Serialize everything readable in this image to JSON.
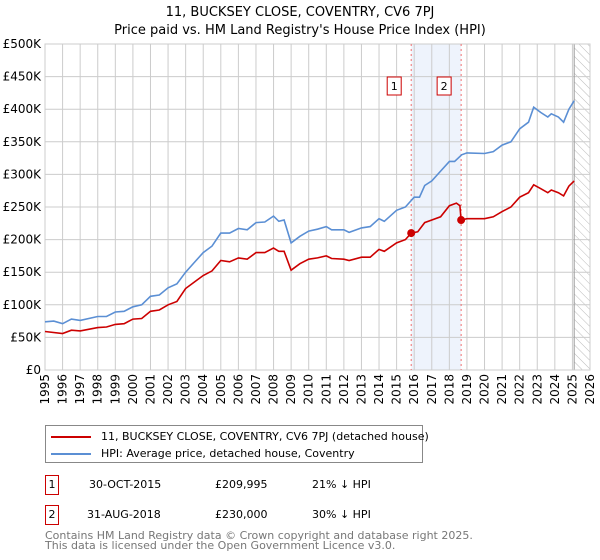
{
  "chart_data": {
    "type": "line",
    "title": "11, BUCKSEY CLOSE, COVENTRY, CV6 7PJ",
    "subtitle": "Price paid vs. HM Land Registry's House Price Index (HPI)",
    "xlim": [
      1995,
      2026
    ],
    "ylim": [
      0,
      500000
    ],
    "grid": true,
    "x_ticks": [
      "1995",
      "1996",
      "1997",
      "1998",
      "1999",
      "2000",
      "2001",
      "2002",
      "2003",
      "2004",
      "2005",
      "2006",
      "2007",
      "2008",
      "2009",
      "2010",
      "2011",
      "2012",
      "2013",
      "2014",
      "2015",
      "2016",
      "2017",
      "2018",
      "2019",
      "2020",
      "2021",
      "2022",
      "2023",
      "2024",
      "2025",
      "2026"
    ],
    "y_ticks": [
      {
        "value": 0,
        "label": "£0"
      },
      {
        "value": 50000,
        "label": "£50K"
      },
      {
        "value": 100000,
        "label": "£100K"
      },
      {
        "value": 150000,
        "label": "£150K"
      },
      {
        "value": 200000,
        "label": "£200K"
      },
      {
        "value": 250000,
        "label": "£250K"
      },
      {
        "value": 300000,
        "label": "£300K"
      },
      {
        "value": 350000,
        "label": "£350K"
      },
      {
        "value": 400000,
        "label": "£400K"
      },
      {
        "value": 450000,
        "label": "£450K"
      },
      {
        "value": 500000,
        "label": "£500K"
      }
    ],
    "shaded_range": [
      2015.83,
      2018.67
    ],
    "forecast_hatch_from": 2025.1,
    "series": [
      {
        "name": "11, BUCKSEY CLOSE, COVENTRY, CV6 7PJ (detached house)",
        "color": "#cc0000",
        "x": [
          1995,
          1996,
          1996.5,
          1997,
          1998,
          1998.5,
          1999,
          1999.5,
          2000,
          2000.5,
          2001,
          2001.5,
          2002,
          2002.5,
          2003,
          2003.5,
          2004,
          2004.5,
          2005,
          2005.5,
          2006,
          2006.5,
          2007,
          2007.5,
          2008,
          2008.3,
          2008.6,
          2009,
          2009.5,
          2010,
          2010.5,
          2011,
          2011.3,
          2012,
          2012.3,
          2013,
          2013.5,
          2014,
          2014.3,
          2015,
          2015.5,
          2015.83,
          2016.2,
          2016.6,
          2017,
          2017.5,
          2018,
          2018.4,
          2018.6,
          2018.67,
          2019,
          2020,
          2020.5,
          2021,
          2021.5,
          2022,
          2022.5,
          2022.8,
          2023.2,
          2023.6,
          2023.8,
          2024.2,
          2024.5,
          2024.8,
          2025.1
        ],
        "y": [
          59000,
          56000,
          61000,
          60000,
          65000,
          66000,
          70000,
          71000,
          78000,
          79000,
          90000,
          92000,
          100000,
          105000,
          125000,
          135000,
          145000,
          152000,
          168000,
          166000,
          172000,
          170000,
          180000,
          180000,
          187000,
          182000,
          182000,
          153000,
          163000,
          170000,
          172000,
          175000,
          171000,
          170000,
          168000,
          173000,
          173000,
          185000,
          182000,
          195000,
          200000,
          209995,
          212000,
          226000,
          230000,
          235000,
          252000,
          256000,
          252000,
          230000,
          232000,
          232000,
          235000,
          243000,
          250000,
          265000,
          272000,
          284000,
          278000,
          272000,
          276000,
          272000,
          267000,
          282000,
          290000
        ]
      },
      {
        "name": "HPI: Average price, detached house, Coventry",
        "color": "#5b8fd4",
        "x": [
          1995,
          1995.5,
          1996,
          1996.5,
          1997,
          1998,
          1998.5,
          1999,
          1999.5,
          2000,
          2000.5,
          2001,
          2001.5,
          2002,
          2002.5,
          2003,
          2003.5,
          2004,
          2004.5,
          2005,
          2005.5,
          2006,
          2006.5,
          2007,
          2007.5,
          2008,
          2008.3,
          2008.6,
          2009,
          2009.5,
          2010,
          2010.5,
          2011,
          2011.3,
          2012,
          2012.3,
          2013,
          2013.5,
          2014,
          2014.3,
          2015,
          2015.5,
          2016,
          2016.3,
          2016.6,
          2017,
          2017.5,
          2018,
          2018.3,
          2018.7,
          2019,
          2020,
          2020.5,
          2021,
          2021.5,
          2022,
          2022.5,
          2022.8,
          2023.2,
          2023.6,
          2023.8,
          2024.2,
          2024.5,
          2024.8,
          2025.1
        ],
        "y": [
          74000,
          75000,
          71000,
          78000,
          76000,
          82000,
          82000,
          89000,
          90000,
          97000,
          100000,
          113000,
          115000,
          126000,
          132000,
          150000,
          165000,
          180000,
          190000,
          210000,
          210000,
          217000,
          215000,
          226000,
          227000,
          236000,
          228000,
          230000,
          195000,
          205000,
          213000,
          216000,
          220000,
          215000,
          215000,
          211000,
          218000,
          220000,
          232000,
          228000,
          245000,
          250000,
          265000,
          265000,
          283000,
          290000,
          305000,
          320000,
          320000,
          330000,
          333000,
          332000,
          335000,
          345000,
          350000,
          370000,
          380000,
          403000,
          395000,
          388000,
          393000,
          388000,
          380000,
          400000,
          413000
        ]
      }
    ],
    "markers": [
      {
        "label": "1",
        "x": 2015.83,
        "y": 209995
      },
      {
        "label": "2",
        "x": 2018.67,
        "y": 230000
      }
    ]
  },
  "legend": {
    "items": [
      {
        "label": "11, BUCKSEY CLOSE, COVENTRY, CV6 7PJ (detached house)",
        "color": "#cc0000"
      },
      {
        "label": "HPI: Average price, detached house, Coventry",
        "color": "#5b8fd4"
      }
    ]
  },
  "transactions": [
    {
      "num": "1",
      "date": "30-OCT-2015",
      "price": "£209,995",
      "hpi": "21% ↓ HPI"
    },
    {
      "num": "2",
      "date": "31-AUG-2018",
      "price": "£230,000",
      "hpi": "30% ↓ HPI"
    }
  ],
  "footer": {
    "line1": "Contains HM Land Registry data © Crown copyright and database right 2025.",
    "line2": "This data is licensed under the Open Government Licence v3.0."
  }
}
